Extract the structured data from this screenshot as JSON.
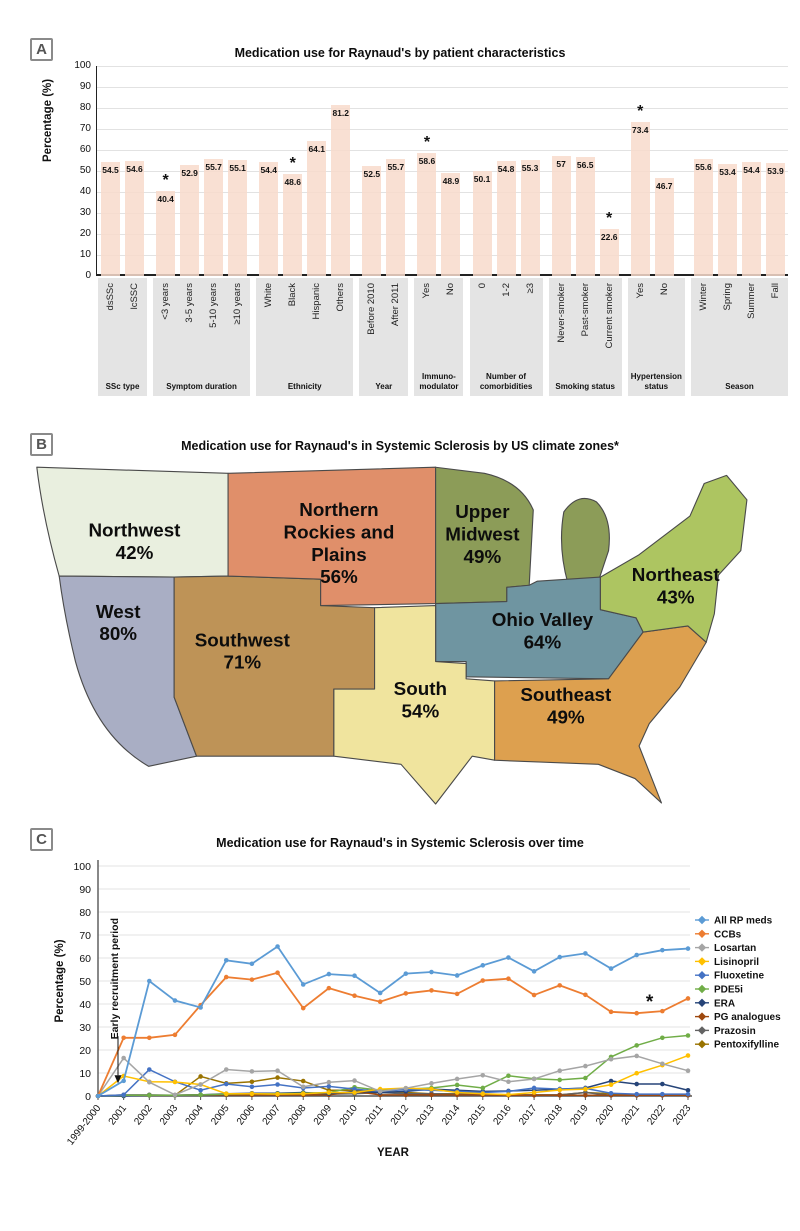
{
  "chart_data": [
    {
      "type": "bar",
      "panel": "A",
      "title": "Medication use for Raynaud's by patient characteristics",
      "ylabel": "Percentage (%)",
      "ylim": [
        0,
        100
      ],
      "y_ticks": [
        0,
        10,
        20,
        30,
        40,
        50,
        60,
        70,
        80,
        90,
        100
      ],
      "bar_color": "#F8DBCB",
      "significance_symbol": "*",
      "groups": [
        {
          "name": "SSc type",
          "bars": [
            {
              "label": "dsSSc",
              "value": 54.5
            },
            {
              "label": "lcSSC",
              "value": 54.6
            }
          ]
        },
        {
          "name": "Symptom duration",
          "bars": [
            {
              "label": "<3 years",
              "value": 40.4,
              "significant": true
            },
            {
              "label": "3-5 years",
              "value": 52.9
            },
            {
              "label": "5-10 years",
              "value": 55.7
            },
            {
              "label": "≥10 years",
              "value": 55.1
            }
          ]
        },
        {
          "name": "Ethnicity",
          "bars": [
            {
              "label": "White",
              "value": 54.4
            },
            {
              "label": "Black",
              "value": 48.6,
              "significant": true
            },
            {
              "label": "Hispanic",
              "value": 64.1
            },
            {
              "label": "Others",
              "value": 81.2
            }
          ]
        },
        {
          "name": "Year",
          "bars": [
            {
              "label": "Before 2010",
              "value": 52.5
            },
            {
              "label": "After 2011",
              "value": 55.7
            }
          ]
        },
        {
          "name": "Immuno-\nmodulator",
          "bars": [
            {
              "label": "Yes",
              "value": 58.6,
              "significant": true
            },
            {
              "label": "No",
              "value": 48.9
            }
          ]
        },
        {
          "name": "Number of\ncomorbidities",
          "bars": [
            {
              "label": "0",
              "value": 50.1
            },
            {
              "label": "1-2",
              "value": 54.8
            },
            {
              "label": "≥3",
              "value": 55.3
            }
          ]
        },
        {
          "name": "Smoking status",
          "bars": [
            {
              "label": "Never-smoker",
              "value": 57
            },
            {
              "label": "Past-smoker",
              "value": 56.5
            },
            {
              "label": "Current smoker",
              "value": 22.6,
              "significant": true
            }
          ]
        },
        {
          "name": "Hypertension\nstatus",
          "bars": [
            {
              "label": "Yes",
              "value": 73.4,
              "significant": true
            },
            {
              "label": "No",
              "value": 46.7
            }
          ]
        },
        {
          "name": "Season",
          "bars": [
            {
              "label": "Winter",
              "value": 55.6
            },
            {
              "label": "Spring",
              "value": 53.4
            },
            {
              "label": "Summer",
              "value": 54.4
            },
            {
              "label": "Fall",
              "value": 53.9
            }
          ]
        }
      ]
    },
    {
      "type": "map",
      "panel": "B",
      "title": "Medication use for Raynaud's in Systemic Sclerosis by US climate zones*",
      "regions": [
        {
          "name": "Northwest",
          "label_lines": [
            "Northwest"
          ],
          "value": "42%",
          "value_pct": 42,
          "color": "#E9EFDF"
        },
        {
          "name": "West",
          "label_lines": [
            "West"
          ],
          "value": "80%",
          "value_pct": 80,
          "color": "#A9AEC4"
        },
        {
          "name": "Southwest",
          "label_lines": [
            "Southwest"
          ],
          "value": "71%",
          "value_pct": 71,
          "color": "#BE9357"
        },
        {
          "name": "Northern Rockies and Plains",
          "label_lines": [
            "Northern",
            "Rockies and",
            "Plains"
          ],
          "value": "56%",
          "value_pct": 56,
          "color": "#E08F6A"
        },
        {
          "name": "Upper Midwest",
          "label_lines": [
            "Upper",
            "Midwest"
          ],
          "value": "49%",
          "value_pct": 49,
          "color": "#8C9C58"
        },
        {
          "name": "Ohio Valley",
          "label_lines": [
            "Ohio Valley"
          ],
          "value": "64%",
          "value_pct": 64,
          "color": "#6F95A1"
        },
        {
          "name": "South",
          "label_lines": [
            "South"
          ],
          "value": "54%",
          "value_pct": 54,
          "color": "#F0E49E"
        },
        {
          "name": "Southeast",
          "label_lines": [
            "Southeast"
          ],
          "value": "49%",
          "value_pct": 49,
          "color": "#DDA04F"
        },
        {
          "name": "Northeast",
          "label_lines": [
            "Northeast"
          ],
          "value": "43%",
          "value_pct": 43,
          "color": "#ADC561"
        }
      ]
    },
    {
      "type": "line",
      "panel": "C",
      "title": "Medication use for Raynaud's in Systemic Sclerosis over time",
      "xlabel": "YEAR",
      "ylabel": "Percentage (%)",
      "ylim": [
        0,
        100
      ],
      "y_ticks": [
        0,
        10,
        20,
        30,
        40,
        50,
        60,
        70,
        80,
        90,
        100
      ],
      "annotation": "Early recruitment period",
      "significance_symbol": "*",
      "significance_note": {
        "series": "CCBs",
        "near_year": "2022",
        "y": 40.5
      },
      "legend_position": "right",
      "x": [
        "1999-2000",
        "2001",
        "2002",
        "2003",
        "2004",
        "2005",
        "2006",
        "2007",
        "2008",
        "2009",
        "2010",
        "2011",
        "2012",
        "2013",
        "2014",
        "2015",
        "2016",
        "2017",
        "2018",
        "2019",
        "2020",
        "2021",
        "2022",
        "2023"
      ],
      "series": [
        {
          "name": "All RP meds",
          "color": "#5B9BD5",
          "values": [
            0,
            6.6,
            50,
            41.5,
            38.5,
            59,
            57.5,
            65,
            48.5,
            53,
            52.3,
            44.8,
            53.2,
            53.9,
            52.4,
            56.8,
            60.2,
            54.2,
            60.4,
            62,
            55.4,
            61.3,
            63.4,
            64.1
          ]
        },
        {
          "name": "CCBs",
          "color": "#ED7D31",
          "values": [
            0,
            25.3,
            25.3,
            26.6,
            39.5,
            51.7,
            50.6,
            53.6,
            38.2,
            46.9,
            43.6,
            41,
            44.6,
            45.9,
            44.4,
            50.2,
            51,
            43.9,
            48.1,
            44,
            36.6,
            36,
            36.9,
            42.4
          ]
        },
        {
          "name": "Losartan",
          "color": "#A5A5A5",
          "values": [
            0,
            16.5,
            6,
            0.5,
            5,
            11.5,
            10.7,
            11,
            4,
            6,
            6.7,
            2,
            3.4,
            5.5,
            7.4,
            9,
            6.2,
            7.4,
            11,
            13,
            16,
            17.4,
            14,
            11
          ]
        },
        {
          "name": "Lisinopril",
          "color": "#FFC000",
          "values": [
            0,
            8.7,
            6.2,
            6.1,
            5,
            1,
            1,
            0.8,
            1,
            1.5,
            1.5,
            3,
            3.4,
            3,
            1.5,
            1,
            0.6,
            1.5,
            2.6,
            3,
            4.9,
            9.9,
            13.4,
            17.6
          ]
        },
        {
          "name": "Fluoxetine",
          "color": "#4472C4",
          "values": [
            0,
            0.5,
            11.5,
            6.2,
            2.5,
            5.2,
            4,
            5,
            3.5,
            4.2,
            3,
            2,
            2.8,
            2.5,
            2,
            1.5,
            2,
            3.5,
            3,
            3.3,
            1.2,
            0.8,
            0.8,
            0.8
          ]
        },
        {
          "name": "PDE5i",
          "color": "#70AD47",
          "values": [
            0,
            0.3,
            0.3,
            0.3,
            0.5,
            0.8,
            1,
            1,
            1.2,
            1.5,
            3.8,
            2.5,
            3,
            3.5,
            4.8,
            3.5,
            8.8,
            7.5,
            7,
            7.8,
            17,
            22,
            25.3,
            26.3
          ]
        },
        {
          "name": "ERA",
          "color": "#264478",
          "values": [
            0,
            0,
            0.3,
            0.3,
            0.5,
            1,
            1.2,
            1.2,
            1.5,
            1,
            2,
            1.5,
            2,
            3,
            2.5,
            2,
            2.2,
            2.5,
            3,
            3.5,
            6.5,
            5.2,
            5.2,
            2.5
          ]
        },
        {
          "name": "PG analogues",
          "color": "#9E480E",
          "values": [
            0,
            0.3,
            0.3,
            0.3,
            0.5,
            0.5,
            0.5,
            0.5,
            0.5,
            0.5,
            2,
            0.5,
            0.5,
            0.5,
            0.5,
            0.5,
            0.3,
            0.3,
            0.3,
            0.3,
            0.3,
            0.3,
            0.3,
            0.3
          ]
        },
        {
          "name": "Prazosin",
          "color": "#636363",
          "values": [
            0,
            0.5,
            0.5,
            0.3,
            0.5,
            0.5,
            0.5,
            0.5,
            0.5,
            0.8,
            1,
            1.5,
            1,
            1,
            0.8,
            0.5,
            0.5,
            0.5,
            0.5,
            1.5,
            0.3,
            0.3,
            0.3,
            0.3
          ]
        },
        {
          "name": "Pentoxifylline",
          "color": "#997300",
          "values": [
            0,
            0.3,
            0.3,
            0.3,
            8.5,
            5.5,
            6.2,
            8,
            6.5,
            2.5,
            2.5,
            2,
            1.5,
            1,
            1,
            0.8,
            0.5,
            0.5,
            0.5,
            1.5,
            1,
            0.5,
            0.5,
            0.5
          ]
        }
      ]
    }
  ]
}
